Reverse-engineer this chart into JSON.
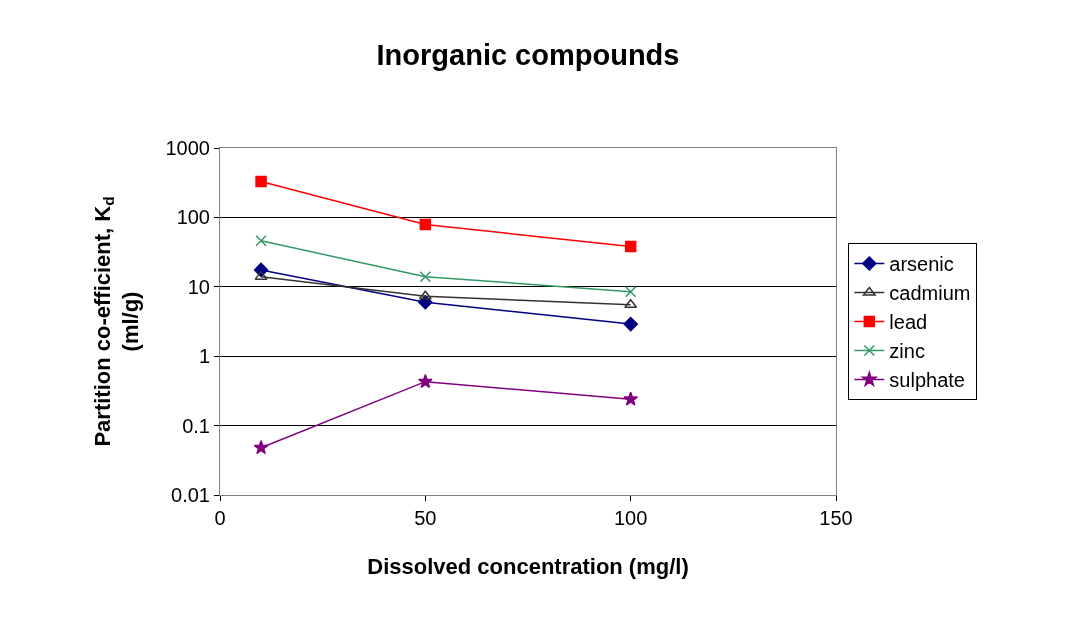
{
  "chart_data": {
    "type": "line",
    "title": "Inorganic compounds",
    "xlabel": "Dissolved concentration (mg/l)",
    "ylabel": "Partition co-efficient, K$_{d}$ (ml/g)",
    "x": [
      10,
      50,
      100
    ],
    "series": [
      {
        "name": "arsenic",
        "color": "#000080",
        "marker": "diamond",
        "values": [
          17.5,
          6,
          2.9
        ]
      },
      {
        "name": "cadmium",
        "color": "#333333",
        "marker": "triangle",
        "values": [
          14,
          7.3,
          5.5
        ]
      },
      {
        "name": "lead",
        "color": "#ff0000",
        "marker": "square",
        "values": [
          330,
          79,
          38
        ]
      },
      {
        "name": "zinc",
        "color": "#339966",
        "marker": "cross",
        "values": [
          46,
          14,
          8.5
        ]
      },
      {
        "name": "sulphate",
        "color": "#800080",
        "marker": "star",
        "values": [
          0.048,
          0.43,
          0.24
        ]
      }
    ],
    "log": "y",
    "xlim": [
      0,
      150
    ],
    "xticks": [
      0,
      50,
      100,
      150
    ],
    "ylim": [
      0.01,
      1000
    ],
    "yticks": [
      0.01,
      0.1,
      1,
      10,
      100,
      1000
    ],
    "grid": "y",
    "legend": "right",
    "line_style": "solid"
  }
}
